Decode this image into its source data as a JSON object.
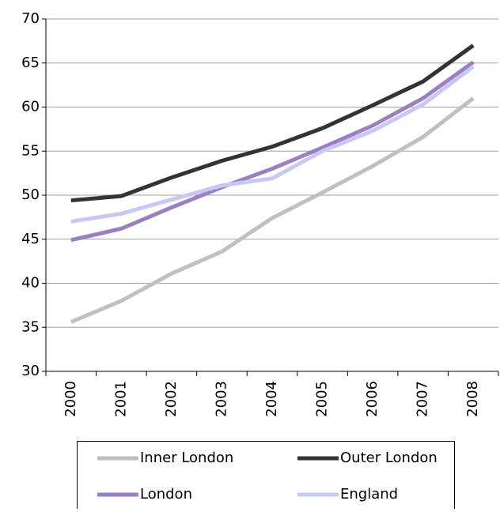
{
  "chart_data": {
    "type": "line",
    "categories": [
      "2000",
      "2001",
      "2002",
      "2003",
      "2004",
      "2005",
      "2006",
      "2007",
      "2008"
    ],
    "series": [
      {
        "name": "Inner London",
        "color": "#c0c0c0",
        "values": [
          35.6,
          38,
          41.1,
          43.6,
          47.4,
          50.3,
          53.3,
          56.6,
          61
        ]
      },
      {
        "name": "Outer London",
        "color": "#333333",
        "values": [
          49.4,
          49.9,
          52,
          53.9,
          55.5,
          57.6,
          60.2,
          62.9,
          67
        ]
      },
      {
        "name": "London",
        "color": "#9b7fc0",
        "values": [
          44.9,
          46.2,
          48.6,
          50.9,
          53,
          55.4,
          57.9,
          61,
          65.1
        ]
      },
      {
        "name": "England",
        "color": "#c8c8f5",
        "values": [
          47,
          47.9,
          49.5,
          51.1,
          51.9,
          55,
          57.3,
          60.3,
          64.6
        ]
      }
    ],
    "ylim": [
      30,
      70
    ],
    "yticks": [
      30,
      35,
      40,
      45,
      50,
      55,
      60,
      65,
      70
    ],
    "grid": true,
    "legend": "bottom"
  }
}
